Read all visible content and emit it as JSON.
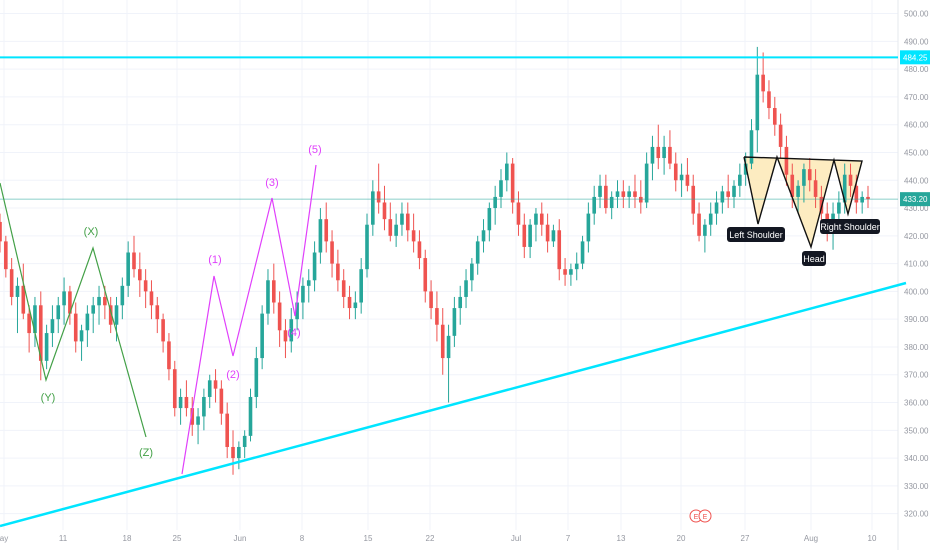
{
  "chart_data": {
    "type": "candlestick",
    "y_axis": {
      "position": "right",
      "range": [
        317,
        502
      ],
      "ticks": [
        320,
        330,
        340,
        350,
        360,
        370,
        380,
        390,
        400,
        410,
        420,
        430,
        440,
        450,
        460,
        470,
        480,
        490,
        500
      ],
      "tick_labels": [
        "320.00",
        "330.00",
        "340.00",
        "350.00",
        "360.00",
        "370.00",
        "380.00",
        "390.00",
        "400.00",
        "410.00",
        "420.00",
        "430.00",
        "440.00",
        "450.00",
        "460.00",
        "470.00",
        "480.00",
        "490.00",
        "500.00"
      ]
    },
    "x_axis": {
      "tick_labels": [
        "ay",
        "11",
        "18",
        "25",
        "Jun",
        "8",
        "15",
        "22",
        "Jul",
        "7",
        "13",
        "20",
        "27",
        "Aug",
        "10"
      ]
    },
    "price_labels": [
      {
        "value": 484.25,
        "text": "484.25"
      },
      {
        "value": 433.2,
        "text": "433.20"
      }
    ],
    "lines": [
      {
        "name": "resistance",
        "kind": "horizontal",
        "value": 484.25,
        "color": "#00e5ff"
      },
      {
        "name": "current",
        "kind": "horizontal",
        "value": 433.2,
        "color": "#26a69a"
      },
      {
        "name": "support",
        "kind": "trendline",
        "color": "#00e5ff"
      }
    ],
    "wave_labels": [
      {
        "text": "(X)",
        "color": "#43a047"
      },
      {
        "text": "(Y)",
        "color": "#43a047"
      },
      {
        "text": "(Z)",
        "color": "#43a047"
      },
      {
        "text": "(1)",
        "color": "#e040fb"
      },
      {
        "text": "(2)",
        "color": "#e040fb"
      },
      {
        "text": "(3)",
        "color": "#e040fb"
      },
      {
        "text": "(4)",
        "color": "#e040fb"
      },
      {
        "text": "(5)",
        "color": "#e040fb"
      }
    ],
    "pattern_labels": [
      "Left Shoulder",
      "Head",
      "Right Shoulder"
    ],
    "event_markers": [
      "E",
      "E"
    ],
    "colors": {
      "up": "#26a69a",
      "down": "#ef5350",
      "grid": "#f0f3fa",
      "pattern_fill": "#fde9b6"
    },
    "candles": [
      [
        425,
        428,
        414,
        418
      ],
      [
        418,
        420,
        405,
        408
      ],
      [
        408,
        412,
        395,
        398
      ],
      [
        398,
        405,
        385,
        402
      ],
      [
        402,
        410,
        390,
        392
      ],
      [
        392,
        395,
        378,
        385
      ],
      [
        385,
        398,
        380,
        395
      ],
      [
        395,
        400,
        368,
        375
      ],
      [
        375,
        388,
        372,
        385
      ],
      [
        385,
        395,
        380,
        390
      ],
      [
        390,
        398,
        385,
        395
      ],
      [
        395,
        405,
        388,
        400
      ],
      [
        400,
        402,
        388,
        392
      ],
      [
        392,
        396,
        378,
        382
      ],
      [
        382,
        388,
        375,
        386
      ],
      [
        386,
        395,
        380,
        392
      ],
      [
        392,
        398,
        385,
        395
      ],
      [
        395,
        402,
        388,
        398
      ],
      [
        398,
        402,
        390,
        395
      ],
      [
        395,
        398,
        385,
        388
      ],
      [
        388,
        398,
        382,
        395
      ],
      [
        395,
        405,
        390,
        402
      ],
      [
        402,
        418,
        398,
        414
      ],
      [
        414,
        420,
        405,
        408
      ],
      [
        408,
        414,
        398,
        404
      ],
      [
        404,
        408,
        394,
        400
      ],
      [
        400,
        404,
        390,
        395
      ],
      [
        395,
        398,
        385,
        390
      ],
      [
        390,
        392,
        378,
        382
      ],
      [
        382,
        385,
        368,
        372
      ],
      [
        372,
        375,
        355,
        358
      ],
      [
        358,
        365,
        352,
        362
      ],
      [
        362,
        368,
        355,
        358
      ],
      [
        358,
        362,
        348,
        352
      ],
      [
        352,
        358,
        345,
        355
      ],
      [
        355,
        365,
        350,
        362
      ],
      [
        362,
        370,
        358,
        368
      ],
      [
        368,
        372,
        360,
        365
      ],
      [
        365,
        368,
        352,
        356
      ],
      [
        356,
        360,
        340,
        344
      ],
      [
        344,
        350,
        334,
        340
      ],
      [
        340,
        346,
        336,
        344
      ],
      [
        344,
        350,
        340,
        348
      ],
      [
        348,
        365,
        346,
        362
      ],
      [
        362,
        380,
        358,
        376
      ],
      [
        376,
        395,
        372,
        392
      ],
      [
        392,
        408,
        388,
        404
      ],
      [
        404,
        410,
        392,
        396
      ],
      [
        396,
        400,
        380,
        386
      ],
      [
        386,
        390,
        376,
        382
      ],
      [
        382,
        394,
        378,
        390
      ],
      [
        390,
        400,
        386,
        396
      ],
      [
        396,
        405,
        390,
        402
      ],
      [
        402,
        408,
        396,
        404
      ],
      [
        404,
        418,
        400,
        414
      ],
      [
        414,
        430,
        410,
        426
      ],
      [
        426,
        432,
        414,
        418
      ],
      [
        418,
        422,
        405,
        410
      ],
      [
        410,
        415,
        400,
        404
      ],
      [
        404,
        408,
        394,
        398
      ],
      [
        398,
        402,
        390,
        394
      ],
      [
        394,
        400,
        390,
        396
      ],
      [
        396,
        412,
        392,
        408
      ],
      [
        408,
        428,
        405,
        424
      ],
      [
        424,
        440,
        420,
        436
      ],
      [
        436,
        446,
        428,
        432
      ],
      [
        432,
        438,
        422,
        426
      ],
      [
        426,
        432,
        418,
        420
      ],
      [
        420,
        428,
        416,
        424
      ],
      [
        424,
        432,
        420,
        428
      ],
      [
        428,
        432,
        418,
        422
      ],
      [
        422,
        428,
        414,
        418
      ],
      [
        418,
        422,
        408,
        412
      ],
      [
        412,
        415,
        396,
        400
      ],
      [
        400,
        404,
        390,
        394
      ],
      [
        394,
        400,
        382,
        388
      ],
      [
        388,
        394,
        370,
        376
      ],
      [
        376,
        388,
        360,
        384
      ],
      [
        384,
        398,
        380,
        394
      ],
      [
        394,
        402,
        388,
        398
      ],
      [
        398,
        408,
        394,
        404
      ],
      [
        404,
        412,
        400,
        410
      ],
      [
        410,
        420,
        406,
        418
      ],
      [
        418,
        426,
        414,
        422
      ],
      [
        422,
        432,
        418,
        430
      ],
      [
        430,
        438,
        424,
        434
      ],
      [
        434,
        444,
        430,
        440
      ],
      [
        440,
        450,
        436,
        446
      ],
      [
        446,
        448,
        428,
        432
      ],
      [
        432,
        436,
        420,
        424
      ],
      [
        424,
        428,
        412,
        416
      ],
      [
        416,
        426,
        412,
        424
      ],
      [
        424,
        430,
        418,
        428
      ],
      [
        428,
        432,
        420,
        424
      ],
      [
        424,
        428,
        414,
        418
      ],
      [
        418,
        424,
        416,
        422
      ],
      [
        422,
        426,
        404,
        408
      ],
      [
        408,
        412,
        402,
        406
      ],
      [
        406,
        410,
        402,
        408
      ],
      [
        408,
        414,
        404,
        410
      ],
      [
        410,
        420,
        408,
        418
      ],
      [
        418,
        432,
        414,
        428
      ],
      [
        428,
        438,
        424,
        434
      ],
      [
        434,
        442,
        430,
        438
      ],
      [
        438,
        442,
        428,
        430
      ],
      [
        430,
        436,
        426,
        434
      ],
      [
        434,
        440,
        430,
        436
      ],
      [
        436,
        440,
        430,
        434
      ],
      [
        434,
        438,
        430,
        436
      ],
      [
        436,
        442,
        430,
        434
      ],
      [
        434,
        440,
        428,
        432
      ],
      [
        432,
        450,
        430,
        446
      ],
      [
        446,
        456,
        440,
        452
      ],
      [
        452,
        460,
        444,
        448
      ],
      [
        448,
        456,
        442,
        452
      ],
      [
        452,
        458,
        444,
        446
      ],
      [
        446,
        450,
        436,
        440
      ],
      [
        440,
        446,
        434,
        442
      ],
      [
        442,
        448,
        436,
        438
      ],
      [
        438,
        442,
        424,
        428
      ],
      [
        428,
        432,
        418,
        420
      ],
      [
        420,
        426,
        414,
        424
      ],
      [
        424,
        432,
        420,
        428
      ],
      [
        428,
        436,
        424,
        432
      ],
      [
        432,
        438,
        428,
        436
      ],
      [
        436,
        442,
        430,
        434
      ],
      [
        434,
        440,
        430,
        438
      ],
      [
        438,
        446,
        434,
        442
      ],
      [
        442,
        450,
        438,
        446
      ],
      [
        446,
        462,
        444,
        458
      ],
      [
        458,
        488,
        450,
        478
      ],
      [
        478,
        486,
        468,
        472
      ],
      [
        472,
        476,
        462,
        466
      ],
      [
        466,
        470,
        456,
        460
      ],
      [
        460,
        464,
        448,
        452
      ],
      [
        452,
        456,
        438,
        442
      ],
      [
        442,
        446,
        430,
        434
      ],
      [
        434,
        440,
        428,
        438
      ],
      [
        438,
        446,
        432,
        444
      ],
      [
        444,
        448,
        436,
        440
      ],
      [
        440,
        444,
        430,
        434
      ],
      [
        434,
        438,
        424,
        428
      ],
      [
        428,
        432,
        418,
        422
      ],
      [
        422,
        432,
        415,
        428
      ],
      [
        428,
        436,
        424,
        432
      ],
      [
        432,
        446,
        428,
        442
      ],
      [
        442,
        446,
        434,
        438
      ],
      [
        438,
        442,
        428,
        432
      ],
      [
        432,
        436,
        428,
        434
      ],
      [
        434,
        438,
        430,
        433.2
      ]
    ]
  }
}
